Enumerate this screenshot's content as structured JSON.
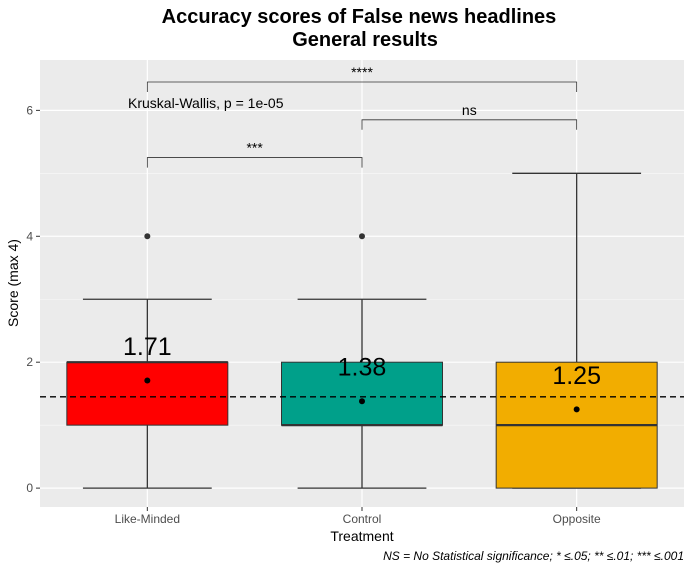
{
  "chart_data": {
    "type": "box",
    "title_line1": "Accuracy scores of False news headlines",
    "title_line2": "General results",
    "xlabel": "Treatment",
    "ylabel": "Score (max 4)",
    "categories": [
      "Like-Minded",
      "Control",
      "Opposite"
    ],
    "ylim": [
      -0.3,
      6.8
    ],
    "yticks": [
      0,
      2,
      4,
      6
    ],
    "boxes": [
      {
        "category": "Like-Minded",
        "whisker_low": 0,
        "q1": 1,
        "median": 2,
        "q3": 2,
        "whisker_high": 3,
        "outliers": [
          4
        ],
        "mean": 1.71,
        "fill": "#ff0000"
      },
      {
        "category": "Control",
        "whisker_low": 0,
        "q1": 1,
        "median": 1,
        "q3": 2,
        "whisker_high": 3,
        "outliers": [
          4
        ],
        "mean": 1.38,
        "fill": "#00a08a"
      },
      {
        "category": "Opposite",
        "whisker_low": 0,
        "q1": 0,
        "median": 1,
        "q3": 2,
        "whisker_high": 5,
        "outliers": [],
        "mean": 1.25,
        "fill": "#f2ad00"
      }
    ],
    "mean_labels": [
      "1.71",
      "1.38",
      "1.25"
    ],
    "overall_mean": 1.45,
    "overall_test": "Kruskal-Wallis, p = 1e-05",
    "comparisons": [
      {
        "from": "Like-Minded",
        "to": "Control",
        "label": "***",
        "y": 5.25
      },
      {
        "from": "Control",
        "to": "Opposite",
        "label": "ns",
        "y": 5.85
      },
      {
        "from": "Like-Minded",
        "to": "Opposite",
        "label": "****",
        "y": 6.45
      }
    ],
    "caption": "NS = No Statistical significance; * ≤.05; ** ≤.01; *** ≤.001",
    "grid": true,
    "background": "#ebebeb"
  }
}
